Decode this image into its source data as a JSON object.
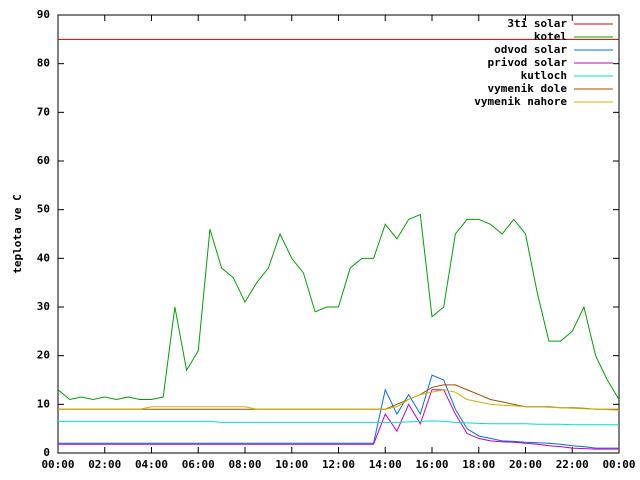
{
  "chart_data": {
    "type": "line",
    "ylabel": "teplota ve C",
    "x": [
      0,
      0.5,
      1,
      1.5,
      2,
      2.5,
      3,
      3.5,
      4,
      4.5,
      5,
      5.5,
      6,
      6.5,
      7,
      7.5,
      8,
      8.5,
      9,
      9.5,
      10,
      10.5,
      11,
      11.5,
      12,
      12.5,
      13,
      13.5,
      14,
      14.5,
      15,
      15.5,
      16,
      16.5,
      17,
      17.5,
      18,
      18.5,
      19,
      19.5,
      20,
      20.5,
      21,
      21.5,
      22,
      22.5,
      23,
      23.5,
      24
    ],
    "xlim": [
      0,
      24
    ],
    "xticks": [
      {
        "value": 0,
        "label": "00:00"
      },
      {
        "value": 2,
        "label": "02:00"
      },
      {
        "value": 4,
        "label": "04:00"
      },
      {
        "value": 6,
        "label": "06:00"
      },
      {
        "value": 8,
        "label": "08:00"
      },
      {
        "value": 10,
        "label": "10:00"
      },
      {
        "value": 12,
        "label": "12:00"
      },
      {
        "value": 14,
        "label": "14:00"
      },
      {
        "value": 16,
        "label": "16:00"
      },
      {
        "value": 18,
        "label": "18:00"
      },
      {
        "value": 20,
        "label": "20:00"
      },
      {
        "value": 22,
        "label": "22:00"
      },
      {
        "value": 24,
        "label": "00:00"
      }
    ],
    "ylim": [
      0,
      90
    ],
    "yticks": [
      0,
      10,
      20,
      30,
      40,
      50,
      60,
      70,
      80,
      90
    ],
    "legend": "top-right",
    "series": [
      {
        "name": "3ti solar",
        "color": "#cc0000",
        "values": [
          85,
          85,
          85,
          85,
          85,
          85,
          85,
          85,
          85,
          85,
          85,
          85,
          85,
          85,
          85,
          85,
          85,
          85,
          85,
          85,
          85,
          85,
          85,
          85,
          85,
          85,
          85,
          85,
          85,
          85,
          85,
          85,
          85,
          85,
          85,
          85,
          85,
          85,
          85,
          85,
          85,
          85,
          85,
          85,
          85,
          85,
          85,
          85,
          85
        ]
      },
      {
        "name": "kotel",
        "color": "#00a000",
        "values": [
          13,
          11,
          11.5,
          11,
          11.5,
          11,
          11.5,
          11,
          11,
          11.5,
          30,
          17,
          21,
          46,
          38,
          36,
          31,
          35,
          38,
          45,
          40,
          37,
          29,
          30,
          30,
          38,
          40,
          40,
          47,
          44,
          48,
          49,
          28,
          30,
          45,
          48,
          48,
          47,
          45,
          48,
          45,
          33,
          23,
          23,
          25,
          30,
          20,
          15,
          11
        ]
      },
      {
        "name": "odvod solar",
        "color": "#0070e0",
        "values": [
          2,
          2,
          2,
          2,
          2,
          2,
          2,
          2,
          2,
          2,
          2,
          2,
          2,
          2,
          2,
          2,
          2,
          2,
          2,
          2,
          2,
          2,
          2,
          2,
          2,
          2,
          2,
          2,
          13,
          8,
          12,
          8,
          16,
          15,
          9,
          5,
          3.5,
          3,
          2.5,
          2.4,
          2.2,
          2.1,
          2,
          1.8,
          1.5,
          1.3,
          1,
          1,
          1
        ]
      },
      {
        "name": "privod solar",
        "color": "#c000c0",
        "values": [
          1.8,
          1.8,
          1.8,
          1.8,
          1.8,
          1.8,
          1.8,
          1.8,
          1.8,
          1.8,
          1.8,
          1.8,
          1.8,
          1.8,
          1.8,
          1.8,
          1.8,
          1.8,
          1.8,
          1.8,
          1.8,
          1.8,
          1.8,
          1.8,
          1.8,
          1.8,
          1.8,
          1.8,
          8,
          4.5,
          10,
          6,
          13,
          13,
          8,
          4,
          3,
          2.5,
          2.3,
          2.2,
          2,
          1.8,
          1.5,
          1.3,
          1,
          0.9,
          0.8,
          0.8,
          0.8
        ]
      },
      {
        "name": "kutloch",
        "color": "#00dede",
        "values": [
          6.5,
          6.5,
          6.5,
          6.5,
          6.5,
          6.5,
          6.5,
          6.5,
          6.5,
          6.5,
          6.5,
          6.5,
          6.5,
          6.5,
          6.3,
          6.3,
          6.3,
          6.3,
          6.3,
          6.3,
          6.3,
          6.3,
          6.3,
          6.3,
          6.3,
          6.3,
          6.3,
          6.3,
          6.3,
          6.3,
          6.4,
          6.5,
          6.6,
          6.5,
          6.3,
          6.2,
          6.1,
          6,
          6,
          6,
          6,
          5.9,
          5.9,
          5.9,
          5.8,
          5.8,
          5.8,
          5.8,
          5.8
        ]
      },
      {
        "name": "vymenik dole",
        "color": "#a05000",
        "values": [
          9,
          9,
          9,
          9,
          9,
          9,
          9,
          9,
          9,
          9,
          9,
          9,
          9,
          9,
          9,
          9,
          9,
          9,
          9,
          9,
          9,
          9,
          9,
          9,
          9,
          9,
          9,
          9,
          9,
          10,
          11,
          12,
          13.5,
          14,
          14,
          13,
          12,
          11,
          10.5,
          10,
          9.5,
          9.5,
          9.5,
          9.3,
          9.3,
          9.2,
          9,
          9,
          9
        ]
      },
      {
        "name": "vymenik nahore",
        "color": "#c8b400",
        "values": [
          9,
          9,
          9,
          9,
          9,
          9,
          9,
          9,
          9.5,
          9.5,
          9.5,
          9.5,
          9.5,
          9.5,
          9.5,
          9.5,
          9.5,
          9,
          9,
          9,
          9,
          9,
          9,
          9,
          9,
          9,
          9,
          9,
          9,
          9.5,
          11,
          12,
          12.5,
          13,
          12.5,
          11,
          10.5,
          10,
          9.8,
          9.7,
          9.5,
          9.5,
          9.4,
          9.3,
          9.2,
          9.1,
          9,
          8.9,
          8.8
        ]
      }
    ]
  }
}
